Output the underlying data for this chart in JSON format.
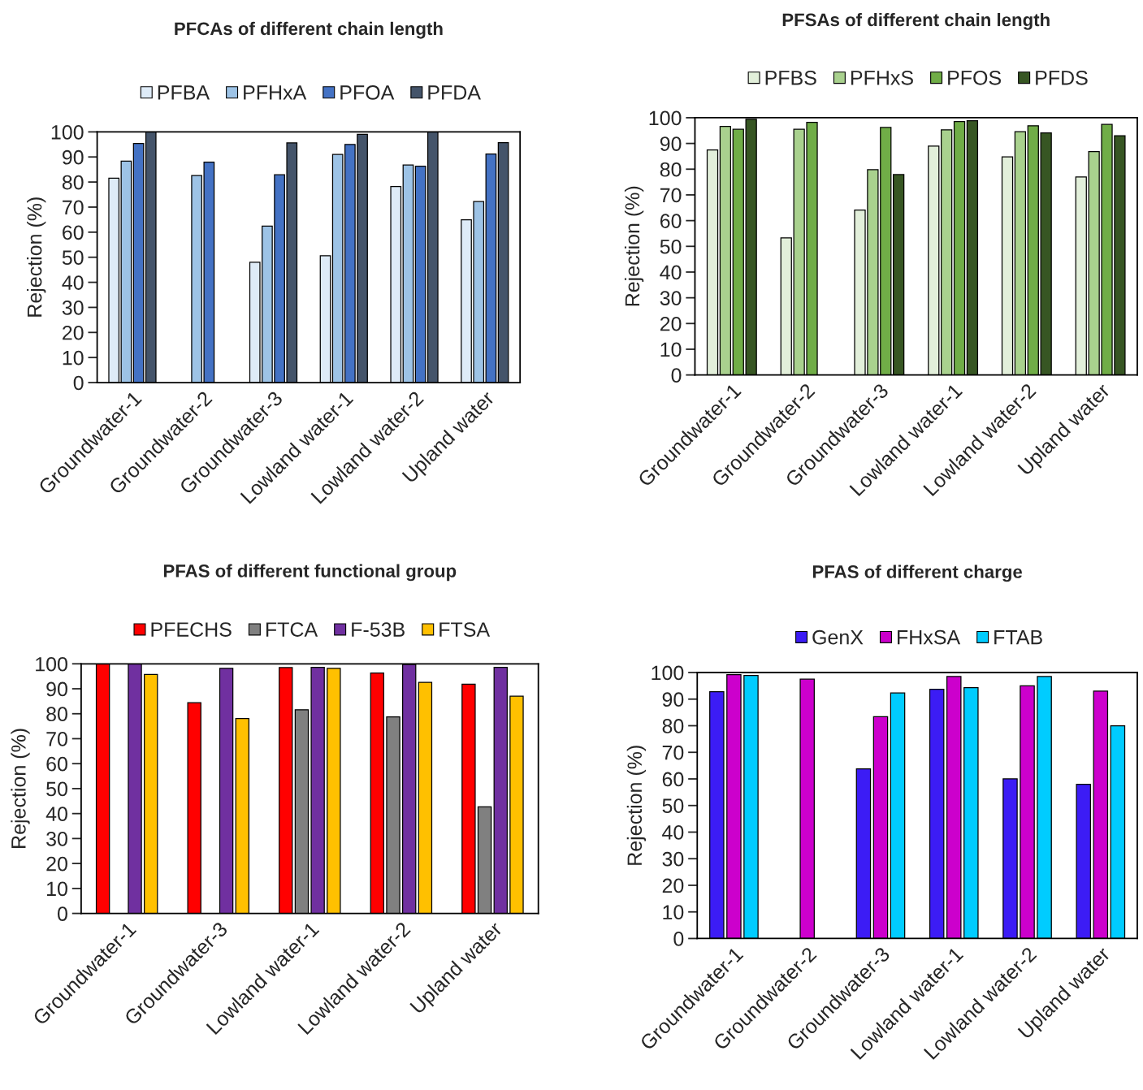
{
  "chart_data": [
    {
      "type": "bar",
      "title": "PFCAs of different chain length",
      "ylabel": "Rejection (%)",
      "legend": "top",
      "ylim": [
        0,
        100
      ],
      "yticks": [
        0,
        10,
        20,
        30,
        40,
        50,
        60,
        70,
        80,
        90,
        100
      ],
      "categories": [
        "Groundwater-1",
        "Groundwater-2",
        "Groundwater-3",
        "Lowland water-1",
        "Lowland water-2",
        "Upland water"
      ],
      "series": [
        {
          "name": "PFBA",
          "color": "#deebf7",
          "values": [
            81.5,
            null,
            48.0,
            50.6,
            78.2,
            64.9
          ]
        },
        {
          "name": "PFHxA",
          "color": "#9dc3e6",
          "values": [
            88.3,
            82.6,
            62.4,
            91.0,
            86.8,
            72.2
          ]
        },
        {
          "name": "PFOA",
          "color": "#4472c4",
          "values": [
            95.4,
            87.9,
            82.9,
            95.0,
            86.3,
            91.2
          ]
        },
        {
          "name": "PFDA",
          "color": "#44546a",
          "values": [
            100,
            null,
            95.6,
            99.0,
            100,
            95.7
          ]
        }
      ]
    },
    {
      "type": "bar",
      "title": "PFSAs of different chain length",
      "ylabel": "Rejection (%)",
      "legend": "top",
      "ylim": [
        0,
        100
      ],
      "yticks": [
        0,
        10,
        20,
        30,
        40,
        50,
        60,
        70,
        80,
        90,
        100
      ],
      "categories": [
        "Groundwater-1",
        "Groundwater-2",
        "Groundwater-3",
        "Lowland water-1",
        "Lowland water-2",
        "Upland water"
      ],
      "series": [
        {
          "name": "PFBS",
          "color": "#e2efda",
          "values": [
            87.5,
            53.3,
            64.1,
            89.0,
            84.8,
            77.0
          ]
        },
        {
          "name": "PFHxS",
          "color": "#a9d18e",
          "values": [
            96.6,
            95.5,
            79.8,
            95.3,
            94.6,
            86.8
          ]
        },
        {
          "name": "PFOS",
          "color": "#70ad47",
          "values": [
            95.5,
            98.2,
            96.2,
            98.5,
            96.9,
            97.4
          ]
        },
        {
          "name": "PFDS",
          "color": "#375623",
          "values": [
            99.4,
            null,
            77.9,
            98.8,
            94.1,
            93.0
          ]
        }
      ]
    },
    {
      "type": "bar",
      "title": "PFAS of different functional group",
      "ylabel": "Rejection (%)",
      "legend": "top",
      "ylim": [
        0,
        100
      ],
      "yticks": [
        0,
        10,
        20,
        30,
        40,
        50,
        60,
        70,
        80,
        90,
        100
      ],
      "categories": [
        "Groundwater-1",
        "Groundwater-3",
        "Lowland water-1",
        "Lowland water-2",
        "Upland water"
      ],
      "series": [
        {
          "name": "PFECHS",
          "color": "#ff0000",
          "values": [
            100,
            84.4,
            98.5,
            96.3,
            91.8
          ]
        },
        {
          "name": "FTCA",
          "color": "#808080",
          "values": [
            null,
            null,
            81.6,
            78.7,
            42.7
          ]
        },
        {
          "name": "F-53B",
          "color": "#7030a0",
          "values": [
            100,
            98.2,
            98.6,
            99.7,
            98.6
          ]
        },
        {
          "name": "FTSA",
          "color": "#ffc000",
          "values": [
            95.7,
            78.1,
            98.2,
            92.6,
            87.0
          ]
        }
      ]
    },
    {
      "type": "bar",
      "title": "PFAS of different charge",
      "ylabel": "Rejection (%)",
      "legend": "top",
      "ylim": [
        0,
        100
      ],
      "yticks": [
        0,
        10,
        20,
        30,
        40,
        50,
        60,
        70,
        80,
        90,
        100
      ],
      "categories": [
        "Groundwater-1",
        "Groundwater-2",
        "Groundwater-3",
        "Lowland water-1",
        "Lowland water-2",
        "Upland water"
      ],
      "series": [
        {
          "name": "GenX",
          "color": "#3c1cf5",
          "values": [
            92.8,
            null,
            63.8,
            93.7,
            60.0,
            58.0
          ]
        },
        {
          "name": "FHxSA",
          "color": "#cc00cc",
          "values": [
            99.2,
            97.5,
            83.4,
            98.5,
            95.0,
            93.0
          ]
        },
        {
          "name": "FTAB",
          "color": "#00ccff",
          "values": [
            98.9,
            null,
            92.3,
            94.3,
            98.5,
            80.0
          ]
        }
      ]
    }
  ]
}
